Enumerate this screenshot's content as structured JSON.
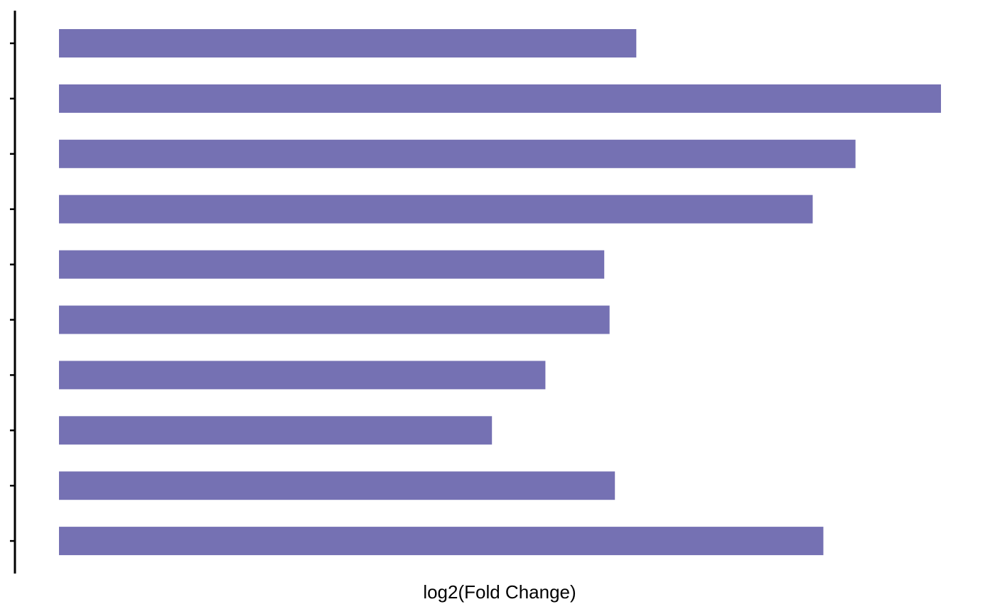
{
  "chart_data": {
    "type": "bar",
    "orientation": "horizontal",
    "xlabel": "log2(Fold Change)",
    "ylabel": "",
    "categories": [
      "",
      "",
      "",
      "",
      "",
      "",
      "",
      "",
      "",
      ""
    ],
    "values": [
      1.08,
      1.65,
      1.49,
      1.41,
      1.02,
      1.03,
      0.91,
      0.81,
      1.04,
      1.43
    ],
    "xlim": [
      0,
      1.65
    ],
    "bar_color": "#7571b3",
    "grid": false,
    "legend": "none",
    "y_tick_labels_visible": false,
    "x_axis_visible": false
  }
}
